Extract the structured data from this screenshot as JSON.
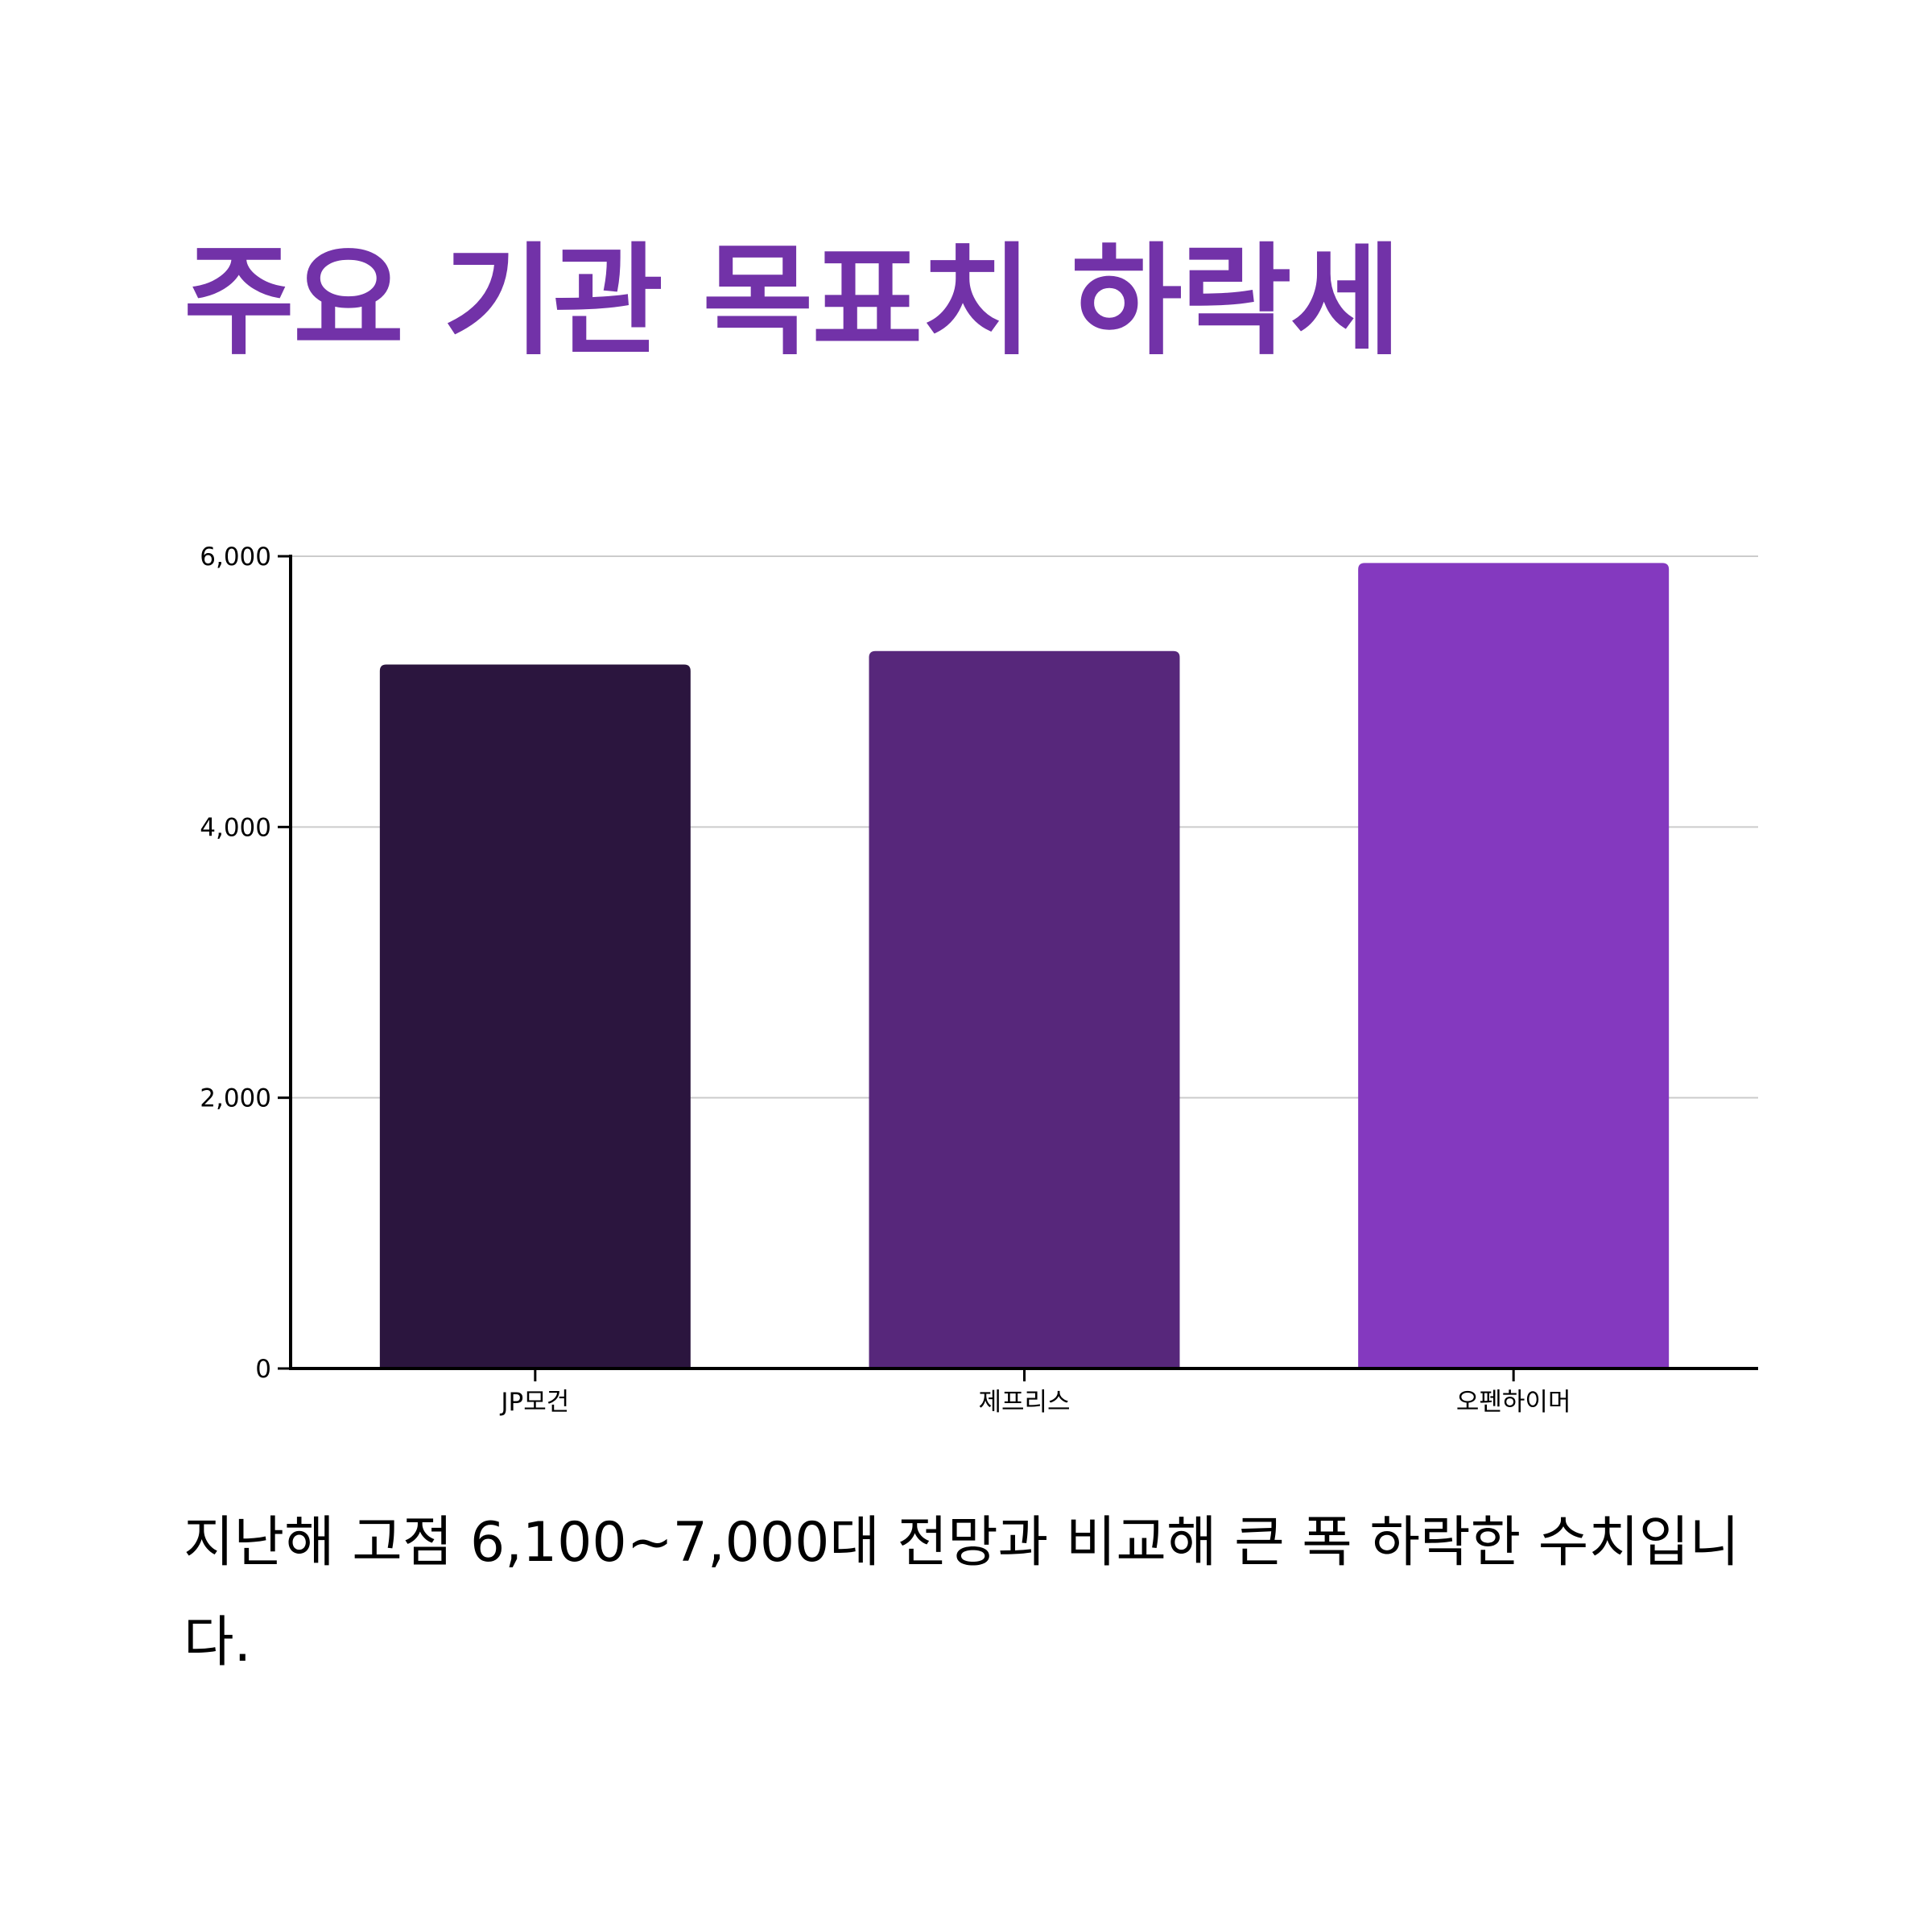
{
  "title": "주요 기관 목표치 하락세",
  "caption": "지난해 고점 6,100~7,000대 전망과 비교해 큰 폭 하락한 수치입니다.",
  "colors": {
    "title": "#7232a8",
    "axis": "#000000",
    "grid": "#cccccc"
  },
  "chart_data": {
    "type": "bar",
    "title": "",
    "xlabel": "",
    "ylabel": "",
    "categories": [
      "JP모건",
      "제프리스",
      "오펜하이머"
    ],
    "values": [
      5200,
      5300,
      5950
    ],
    "bar_colors": [
      "#2b153e",
      "#57277b",
      "#8439bf"
    ],
    "ylim": [
      0,
      6000
    ],
    "yticks": [
      0,
      2000,
      4000,
      6000
    ],
    "ytick_labels": [
      "0",
      "2,000",
      "4,000",
      "6,000"
    ],
    "grid": true,
    "legend": "none"
  }
}
